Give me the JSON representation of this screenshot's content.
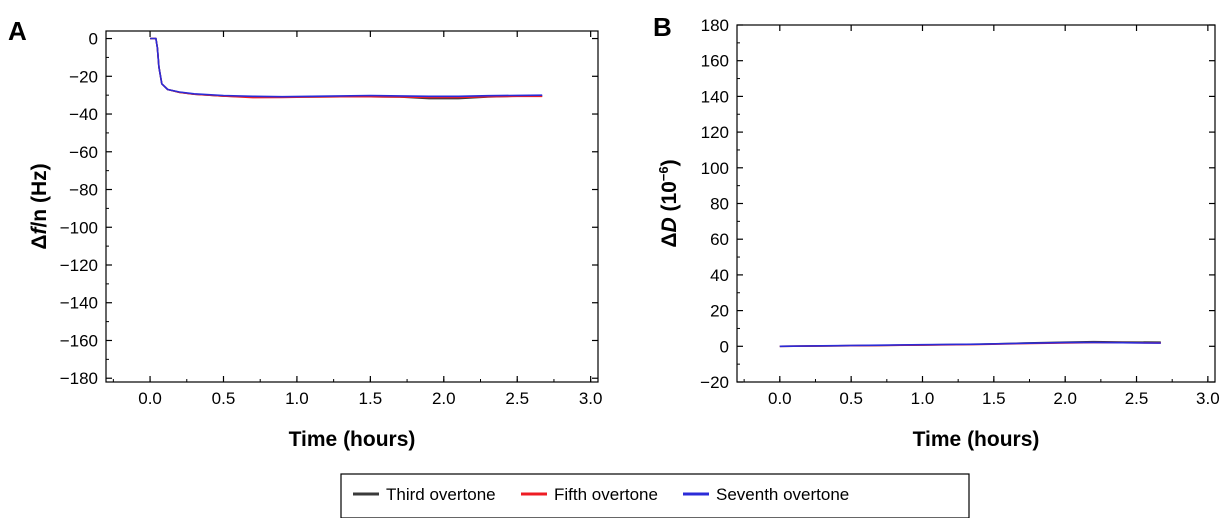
{
  "chart_data": [
    {
      "panel": "A",
      "type": "line",
      "xlabel": "Time (hours)",
      "ylabel": "Δf/n (Hz)",
      "ylabel_parts": {
        "delta": "Δ",
        "symbol": "f",
        "rest": "/n (Hz)"
      },
      "xlim": [
        -0.3,
        3.05
      ],
      "ylim": [
        -182,
        4
      ],
      "xticks": [
        0.0,
        0.5,
        1.0,
        1.5,
        2.0,
        2.5,
        3.0
      ],
      "xtick_labels": [
        "0.0",
        "0.5",
        "1.0",
        "1.5",
        "2.0",
        "2.5",
        "3.0"
      ],
      "yticks": [
        0,
        -20,
        -40,
        -60,
        -80,
        -100,
        -120,
        -140,
        -160,
        -180
      ],
      "ytick_labels": [
        "0",
        "−20",
        "−40",
        "−60",
        "−80",
        "−100",
        "−120",
        "−140",
        "−160",
        "−180"
      ],
      "series": [
        {
          "name": "Third overtone",
          "color": "#3a3a3a",
          "x": [
            0,
            0.04,
            0.05,
            0.06,
            0.08,
            0.12,
            0.2,
            0.3,
            0.5,
            0.7,
            0.9,
            1.1,
            1.3,
            1.5,
            1.7,
            1.9,
            2.1,
            2.3,
            2.5,
            2.67
          ],
          "y": [
            0,
            0,
            -5,
            -15,
            -24,
            -27,
            -28.5,
            -29.5,
            -30.5,
            -31,
            -31,
            -31,
            -30.8,
            -30.8,
            -31,
            -31.8,
            -31.8,
            -31,
            -30.5,
            -30.5
          ]
        },
        {
          "name": "Fifth overtone",
          "color": "#ee1c24",
          "x": [
            0,
            0.04,
            0.05,
            0.06,
            0.08,
            0.12,
            0.2,
            0.3,
            0.5,
            0.7,
            0.9,
            1.1,
            1.3,
            1.5,
            1.7,
            1.9,
            2.1,
            2.3,
            2.5,
            2.67
          ],
          "y": [
            0,
            0,
            -5,
            -15,
            -24,
            -27,
            -28.5,
            -29.5,
            -30.5,
            -31.3,
            -31.2,
            -31,
            -30.8,
            -30.8,
            -31,
            -31.2,
            -31.2,
            -30.8,
            -30.6,
            -30.6
          ]
        },
        {
          "name": "Seventh overtone",
          "color": "#2b2bd8",
          "x": [
            0,
            0.04,
            0.05,
            0.06,
            0.08,
            0.12,
            0.2,
            0.3,
            0.5,
            0.7,
            0.9,
            1.1,
            1.3,
            1.5,
            1.7,
            1.9,
            2.1,
            2.3,
            2.5,
            2.67
          ],
          "y": [
            0,
            0,
            -5,
            -15,
            -24,
            -27,
            -28.3,
            -29.3,
            -30.2,
            -30.6,
            -30.8,
            -30.6,
            -30.4,
            -30.2,
            -30.4,
            -30.6,
            -30.6,
            -30.3,
            -30.1,
            -30
          ]
        }
      ]
    },
    {
      "panel": "B",
      "type": "line",
      "xlabel": "Time (hours)",
      "ylabel": "ΔD (10⁻⁶)",
      "ylabel_parts": {
        "delta": "Δ",
        "symbol": "D",
        "rest": " (10",
        "sup": "−6",
        "close": ")"
      },
      "xlim": [
        -0.3,
        3.05
      ],
      "ylim": [
        -20,
        180
      ],
      "xticks": [
        0.0,
        0.5,
        1.0,
        1.5,
        2.0,
        2.5,
        3.0
      ],
      "xtick_labels": [
        "0.0",
        "0.5",
        "1.0",
        "1.5",
        "2.0",
        "2.5",
        "3.0"
      ],
      "yticks": [
        180,
        160,
        140,
        120,
        100,
        80,
        60,
        40,
        20,
        0,
        -20
      ],
      "ytick_labels": [
        "180",
        "160",
        "140",
        "120",
        "100",
        "80",
        "60",
        "40",
        "20",
        "0",
        "−20"
      ],
      "series": [
        {
          "name": "Third overtone",
          "color": "#3a3a3a",
          "x": [
            0,
            0.3,
            0.7,
            1.0,
            1.4,
            1.7,
            2.0,
            2.2,
            2.4,
            2.67
          ],
          "y": [
            0,
            0.2,
            0.5,
            0.8,
            1.2,
            1.8,
            2.3,
            2.6,
            2.4,
            2.3
          ]
        },
        {
          "name": "Fifth overtone",
          "color": "#ee1c24",
          "x": [
            0,
            0.3,
            0.7,
            1.0,
            1.4,
            1.7,
            2.0,
            2.2,
            2.4,
            2.67
          ],
          "y": [
            0,
            0.2,
            0.5,
            0.7,
            1.0,
            1.5,
            1.9,
            2.1,
            2.0,
            1.9
          ]
        },
        {
          "name": "Seventh overtone",
          "color": "#2b2bd8",
          "x": [
            0,
            0.3,
            0.7,
            1.0,
            1.4,
            1.7,
            2.0,
            2.2,
            2.4,
            2.67
          ],
          "y": [
            0,
            0.3,
            0.6,
            0.9,
            1.2,
            1.7,
            2.1,
            2.2,
            2.0,
            1.8
          ]
        }
      ]
    }
  ],
  "legend": {
    "placement": "bottom-center",
    "items": [
      {
        "label": "Third overtone",
        "color": "#3a3a3a"
      },
      {
        "label": "Fifth overtone",
        "color": "#ee1c24"
      },
      {
        "label": "Seventh overtone",
        "color": "#2b2bd8"
      }
    ]
  }
}
